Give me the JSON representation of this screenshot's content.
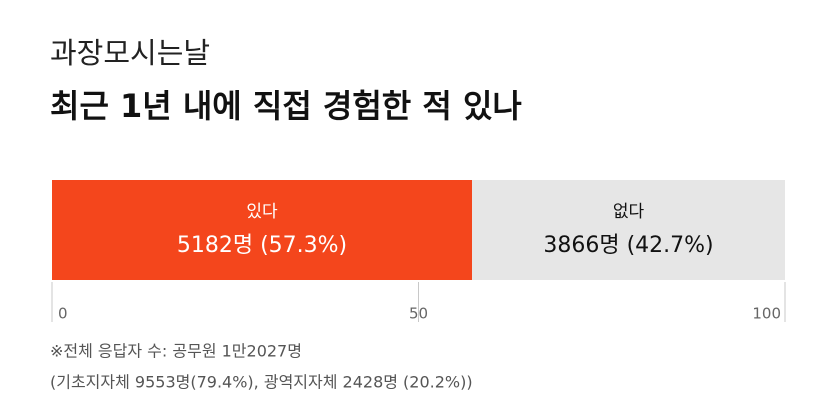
{
  "chart_data": {
    "type": "stacked-bar-horizontal",
    "title": "과장모시는날",
    "subtitle": "최근 1년 내에 직접 경험한 적 있나",
    "series": [
      {
        "name": "있다",
        "color": "#f4461c",
        "values": [
          57.3
        ],
        "value_labels": [
          "5182명 (57.3%)"
        ]
      },
      {
        "name": "없다",
        "color": "#e6e6e6",
        "values": [
          42.7
        ],
        "value_labels": [
          "3866명 (42.7%)"
        ]
      }
    ],
    "xlim": [
      0,
      100
    ],
    "xticks": [
      0,
      50,
      100
    ],
    "notes": [
      "※전체 응답자 수: 공무원 1만2027명",
      "(기초지자체 9553명(79.4%), 광역지자체 2428명 (20.2%))"
    ]
  }
}
